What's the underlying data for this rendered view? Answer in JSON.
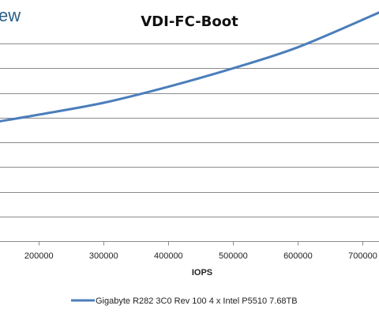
{
  "watermark": {
    "text": "ew"
  },
  "chart_data": {
    "type": "line",
    "title": "VDI-FC-Boot",
    "xlabel": "IOPS",
    "ylabel": "",
    "xlim": [
      140000,
      725000
    ],
    "ylim": [
      0,
      8
    ],
    "x_ticks": [
      200000,
      300000,
      400000,
      500000,
      600000,
      700000
    ],
    "x_tick_labels": [
      "200000",
      "300000",
      "400000",
      "500000",
      "600000",
      "700000"
    ],
    "y_gridlines": [
      0,
      1,
      2,
      3,
      4,
      5,
      6,
      7,
      8
    ],
    "grid": true,
    "legend_position": "bottom",
    "series": [
      {
        "name": "Gigabyte R282 3C0 Rev 100 4 x Intel P5510 7.68TB",
        "color": "#4a7ebb",
        "x": [
          140000,
          200000,
          300000,
          400000,
          500000,
          600000,
          725000
        ],
        "y": [
          4.85,
          5.12,
          5.6,
          6.25,
          7.0,
          7.85,
          9.25
        ]
      }
    ]
  }
}
